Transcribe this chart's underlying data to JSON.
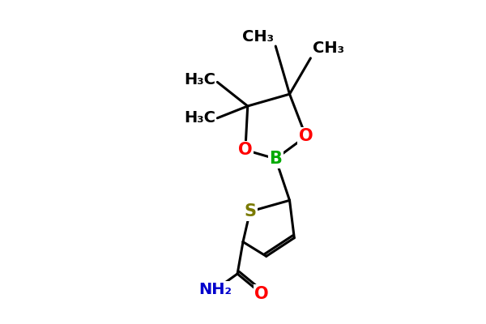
{
  "bg_color": "#ffffff",
  "bond_color": "#000000",
  "bond_width": 2.2,
  "S_color": "#7a7a00",
  "O_color": "#ff0000",
  "B_color": "#00aa00",
  "N_color": "#0000cc",
  "text_color": "#000000",
  "font_size": 15,
  "xlim": [
    2.0,
    9.0
  ],
  "ylim": [
    0.5,
    8.5
  ]
}
